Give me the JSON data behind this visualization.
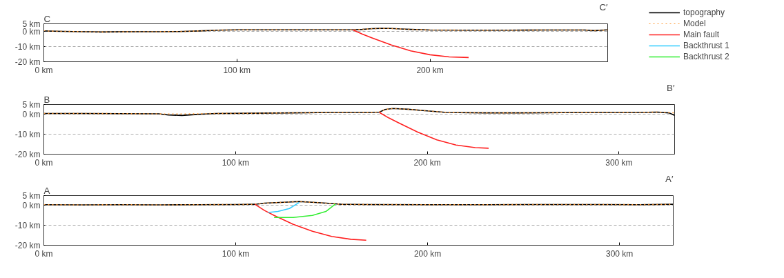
{
  "chart_data": [
    {
      "type": "line",
      "annotations": [
        "C",
        "C′"
      ],
      "xlim": [
        0,
        292
      ],
      "ylim": [
        -20,
        5
      ],
      "xticks": [
        {
          "value": 0,
          "label": "0 km"
        },
        {
          "value": 100,
          "label": "100 km"
        },
        {
          "value": 200,
          "label": "200 km"
        }
      ],
      "yticks": [
        {
          "value": -20,
          "label": "-20 km"
        },
        {
          "value": -10,
          "label": "-10 km"
        },
        {
          "value": 0,
          "label": "0 km"
        },
        {
          "value": 5,
          "label": "5 km"
        }
      ],
      "grid": "y",
      "legend": "right",
      "series": [
        {
          "name": "topography",
          "color": "#000000",
          "line_style": "solid",
          "x": [
            0,
            10,
            20,
            30,
            40,
            50,
            60,
            70,
            80,
            90,
            100,
            120,
            140,
            160,
            165,
            170,
            175,
            180,
            185,
            190,
            200,
            220,
            240,
            260,
            280,
            285,
            292
          ],
          "values": [
            0.3,
            0,
            -0.2,
            -0.4,
            -0.3,
            -0.2,
            -0.2,
            -0.1,
            0.3,
            0.8,
            1,
            1,
            1,
            1,
            1.3,
            1.8,
            2,
            1.9,
            1.6,
            1.3,
            0.9,
            0.8,
            0.8,
            0.9,
            0.9,
            0.5,
            1
          ]
        },
        {
          "name": "Model",
          "color": "#ff9933",
          "line_style": "dotted",
          "x": [
            0,
            10,
            20,
            30,
            40,
            50,
            60,
            70,
            80,
            90,
            100,
            120,
            140,
            160,
            165,
            170,
            175,
            180,
            185,
            190,
            200,
            220,
            240,
            260,
            280,
            285,
            292
          ],
          "values": [
            0.3,
            0,
            -0.2,
            -0.4,
            -0.3,
            -0.2,
            -0.2,
            -0.1,
            0.3,
            0.8,
            1,
            1,
            1,
            1,
            1.3,
            1.8,
            2,
            1.9,
            1.6,
            1.3,
            0.9,
            0.8,
            0.8,
            0.9,
            0.9,
            0.5,
            1
          ]
        },
        {
          "name": "Main fault",
          "color": "#ff2020",
          "line_style": "solid",
          "x": [
            160,
            165,
            170,
            180,
            190,
            200,
            210,
            220
          ],
          "values": [
            1,
            -1.8,
            -4.3,
            -9,
            -12.8,
            -15.4,
            -16.8,
            -17.2
          ]
        }
      ]
    },
    {
      "type": "line",
      "annotations": [
        "B",
        "B′"
      ],
      "xlim": [
        0,
        329
      ],
      "ylim": [
        -20,
        5
      ],
      "xticks": [
        {
          "value": 0,
          "label": "0 km"
        },
        {
          "value": 100,
          "label": "100 km"
        },
        {
          "value": 200,
          "label": "200 km"
        },
        {
          "value": 300,
          "label": "300 km"
        }
      ],
      "yticks": [
        {
          "value": -20,
          "label": "-20 km"
        },
        {
          "value": -10,
          "label": "-10 km"
        },
        {
          "value": 0,
          "label": "0 km"
        },
        {
          "value": 5,
          "label": "5 km"
        }
      ],
      "grid": "y",
      "series": [
        {
          "color": "#000000",
          "line_style": "solid",
          "x": [
            0,
            20,
            40,
            60,
            65,
            72,
            80,
            90,
            110,
            130,
            150,
            170,
            175,
            178,
            182,
            190,
            200,
            210,
            230,
            250,
            270,
            290,
            310,
            320,
            326,
            329
          ],
          "values": [
            0.5,
            0.5,
            0.4,
            0.3,
            -0.3,
            -0.5,
            0,
            0.5,
            0.6,
            0.8,
            1,
            1,
            1.2,
            2.5,
            3,
            2.6,
            1.8,
            1,
            0.8,
            0.8,
            0.9,
            1,
            1,
            1.2,
            0.8,
            -0.5
          ]
        },
        {
          "color": "#ff9933",
          "line_style": "dotted",
          "x": [
            0,
            20,
            40,
            60,
            65,
            72,
            80,
            90,
            110,
            130,
            150,
            170,
            175,
            178,
            182,
            190,
            200,
            210,
            230,
            250,
            270,
            290,
            310,
            320,
            326,
            329
          ],
          "values": [
            0.5,
            0.5,
            0.4,
            0.3,
            0.2,
            0.2,
            0.3,
            0.5,
            0.6,
            0.8,
            1,
            1,
            1.2,
            2.5,
            3,
            2.6,
            1.8,
            1,
            0.8,
            0.8,
            0.9,
            1,
            1,
            1.2,
            0.9,
            0.8
          ]
        },
        {
          "color": "#ff2020",
          "line_style": "solid",
          "x": [
            175,
            180,
            185,
            195,
            205,
            215,
            225,
            232
          ],
          "values": [
            1,
            -1.8,
            -4.2,
            -8.9,
            -12.8,
            -15.4,
            -16.7,
            -17
          ]
        }
      ]
    },
    {
      "type": "line",
      "annotations": [
        "A",
        "A′"
      ],
      "xlim": [
        0,
        328
      ],
      "ylim": [
        -20,
        5
      ],
      "xticks": [
        {
          "value": 0,
          "label": "0 km"
        },
        {
          "value": 100,
          "label": "100 km"
        },
        {
          "value": 200,
          "label": "200 km"
        },
        {
          "value": 300,
          "label": "300 km"
        }
      ],
      "yticks": [
        {
          "value": -20,
          "label": "-20 km"
        },
        {
          "value": -10,
          "label": "-10 km"
        },
        {
          "value": 0,
          "label": "0 km"
        },
        {
          "value": 5,
          "label": "5 km"
        }
      ],
      "grid": "y",
      "legend": "right",
      "series": [
        {
          "color": "#000000",
          "line_style": "solid",
          "x": [
            0,
            20,
            40,
            60,
            80,
            100,
            110,
            115,
            125,
            133,
            140,
            150,
            155,
            170,
            200,
            230,
            260,
            290,
            310,
            328
          ],
          "values": [
            0.4,
            0.3,
            0.4,
            0.3,
            0.4,
            0.5,
            0.6,
            1.2,
            1.6,
            2,
            1.6,
            1,
            0.6,
            0.5,
            0.4,
            0.4,
            0.5,
            0.5,
            0.4,
            0.6
          ]
        },
        {
          "color": "#ff9933",
          "line_style": "dotted",
          "x": [
            0,
            20,
            40,
            60,
            80,
            100,
            110,
            115,
            125,
            133,
            140,
            150,
            155,
            170,
            200,
            230,
            260,
            290,
            310,
            328
          ],
          "values": [
            0.4,
            0.3,
            0.4,
            0.3,
            0.4,
            0.5,
            0.6,
            1.2,
            1.6,
            2,
            1.6,
            1,
            0.6,
            0.5,
            0.4,
            0.4,
            0.5,
            0.5,
            0.4,
            0.6
          ]
        },
        {
          "color": "#ff2020",
          "line_style": "solid",
          "x": [
            110,
            115,
            120,
            130,
            140,
            150,
            160,
            168
          ],
          "values": [
            0.6,
            -2.5,
            -5,
            -9.5,
            -13,
            -15.6,
            -17,
            -17.5
          ]
        },
        {
          "name": "Backthrust 1",
          "color": "#33ccff",
          "line_style": "solid",
          "x": [
            117,
            122,
            128,
            133
          ],
          "values": [
            -3.5,
            -3,
            -1.5,
            1.5
          ]
        },
        {
          "name": "Backthrust 2",
          "color": "#33ee33",
          "line_style": "solid",
          "x": [
            120,
            130,
            140,
            147,
            152
          ],
          "values": [
            -6,
            -6,
            -5,
            -3,
            0.8
          ]
        }
      ]
    }
  ]
}
